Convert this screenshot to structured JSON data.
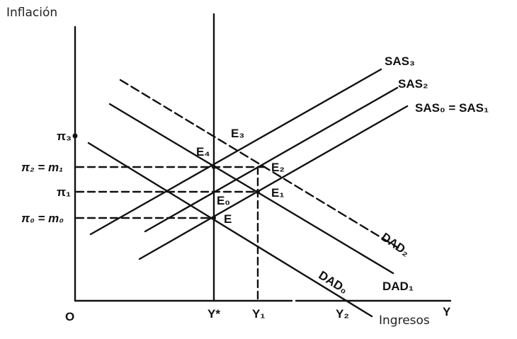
{
  "axes": {
    "y_title": "Inflación",
    "x_title": "Ingresos",
    "x_axis_letter": "Y",
    "origin": "O"
  },
  "x_ticks": {
    "y_star": "Y*",
    "y1": "Y₁",
    "y2": "Y₂"
  },
  "y_ticks": {
    "pi3": "π₃",
    "pi2": "π₂ = m₁",
    "pi1": "π₁",
    "pi0": "π₀ = m₀"
  },
  "curves": {
    "sas3": "SAS₃",
    "sas2": "SAS₂",
    "sas01": "SAS₀ = SAS₁",
    "dad2": "DAD₂",
    "dad1": "DAD₁",
    "dad0": "DAD₀"
  },
  "points": {
    "e": "E",
    "e0": "E₀",
    "e1": "E₁",
    "e2": "E₂",
    "e3": "E₃",
    "e4": "E₄"
  }
}
